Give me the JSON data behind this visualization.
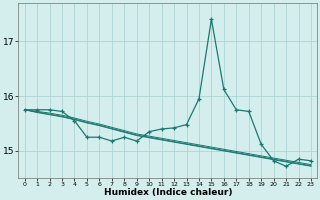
{
  "xlabel": "Humidex (Indice chaleur)",
  "background_color": "#d4eeee",
  "grid_color": "#aed4d4",
  "line_color": "#1a7870",
  "x": [
    0,
    1,
    2,
    3,
    4,
    5,
    6,
    7,
    8,
    9,
    10,
    11,
    12,
    13,
    14,
    15,
    16,
    17,
    18,
    19,
    20,
    21,
    22,
    23
  ],
  "y_main": [
    15.75,
    15.75,
    15.75,
    15.72,
    15.55,
    15.25,
    15.25,
    15.18,
    15.25,
    15.18,
    15.35,
    15.4,
    15.42,
    15.48,
    15.95,
    17.4,
    16.12,
    15.75,
    15.72,
    15.12,
    14.82,
    14.72,
    14.85,
    14.82
  ],
  "y_line1": [
    15.75,
    15.72,
    15.69,
    15.65,
    15.6,
    15.54,
    15.49,
    15.43,
    15.37,
    15.31,
    15.27,
    15.23,
    15.19,
    15.15,
    15.11,
    15.07,
    15.03,
    14.99,
    14.95,
    14.91,
    14.87,
    14.83,
    14.79,
    14.75
  ],
  "y_line2": [
    15.75,
    15.71,
    15.67,
    15.63,
    15.58,
    15.52,
    15.47,
    15.41,
    15.35,
    15.29,
    15.25,
    15.21,
    15.17,
    15.13,
    15.09,
    15.05,
    15.01,
    14.97,
    14.93,
    14.89,
    14.85,
    14.81,
    14.77,
    14.73
  ],
  "y_line3": [
    15.75,
    15.7,
    15.66,
    15.62,
    15.57,
    15.51,
    15.46,
    15.4,
    15.34,
    15.28,
    15.24,
    15.2,
    15.16,
    15.12,
    15.08,
    15.04,
    15.0,
    14.96,
    14.92,
    14.88,
    14.84,
    14.8,
    14.76,
    14.72
  ],
  "ylim": [
    14.5,
    17.7
  ],
  "yticks": [
    15,
    16,
    17
  ],
  "xlim": [
    -0.5,
    23.5
  ],
  "xticks": [
    0,
    1,
    2,
    3,
    4,
    5,
    6,
    7,
    8,
    9,
    10,
    11,
    12,
    13,
    14,
    15,
    16,
    17,
    18,
    19,
    20,
    21,
    22,
    23
  ]
}
